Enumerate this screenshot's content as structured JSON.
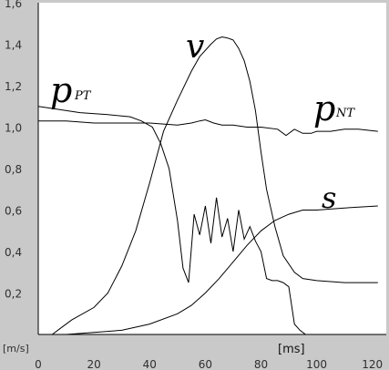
{
  "chart_data": {
    "type": "line",
    "x_unit_label": "[ms]",
    "y_unit_label": "[m/s]",
    "xlim": [
      0,
      125
    ],
    "ylim": [
      0,
      1.6
    ],
    "x_ticks": [
      {
        "value": 0,
        "label": "0"
      },
      {
        "value": 20,
        "label": "20"
      },
      {
        "value": 40,
        "label": "40"
      },
      {
        "value": 60,
        "label": "60"
      },
      {
        "value": 80,
        "label": "80"
      },
      {
        "value": 100,
        "label": "100"
      },
      {
        "value": 120,
        "label": "120"
      }
    ],
    "y_ticks": [
      {
        "value": 0.2,
        "label": "0,2"
      },
      {
        "value": 0.4,
        "label": "0,4"
      },
      {
        "value": 0.6,
        "label": "0,6"
      },
      {
        "value": 0.8,
        "label": "0,8"
      },
      {
        "value": 1.0,
        "label": "1,0"
      },
      {
        "value": 1.2,
        "label": "1,2"
      },
      {
        "value": 1.4,
        "label": "1,4"
      },
      {
        "value": 1.6,
        "label": "1,6"
      }
    ],
    "grid": false,
    "background": "#ffffff",
    "panel_color": "#c9c9c9",
    "line_color": "#000000",
    "series": [
      {
        "label_main": "v",
        "label_sub": "",
        "x": [
          0,
          5,
          8,
          12,
          20,
          25,
          30,
          35,
          40,
          45,
          50,
          55,
          58,
          62,
          64,
          66,
          68,
          70,
          72,
          74,
          76,
          78,
          80,
          82,
          85,
          88,
          92,
          95,
          100,
          110,
          122
        ],
        "y": [
          0.0,
          0.0,
          0.03,
          0.07,
          0.13,
          0.2,
          0.33,
          0.5,
          0.73,
          0.98,
          1.13,
          1.27,
          1.34,
          1.4,
          1.425,
          1.435,
          1.43,
          1.42,
          1.38,
          1.32,
          1.22,
          1.08,
          0.88,
          0.7,
          0.52,
          0.38,
          0.3,
          0.27,
          0.26,
          0.25,
          0.25
        ]
      },
      {
        "label_main": "p",
        "label_sub": "PT",
        "x": [
          0,
          5,
          15,
          25,
          33,
          37,
          41,
          44,
          47,
          50,
          52,
          54,
          56,
          58,
          60,
          62,
          64,
          66,
          68,
          70,
          72,
          74,
          76,
          78,
          80,
          82,
          84,
          86,
          88,
          90,
          92,
          94,
          96,
          122
        ],
        "y": [
          1.1,
          1.09,
          1.07,
          1.06,
          1.05,
          1.03,
          1.0,
          0.92,
          0.8,
          0.55,
          0.32,
          0.25,
          0.58,
          0.48,
          0.62,
          0.44,
          0.66,
          0.47,
          0.56,
          0.4,
          0.6,
          0.46,
          0.52,
          0.45,
          0.4,
          0.27,
          0.26,
          0.26,
          0.25,
          0.23,
          0.05,
          0.02,
          0.0,
          0.0
        ]
      },
      {
        "label_main": "p",
        "label_sub": "NT",
        "x": [
          0,
          10,
          20,
          30,
          40,
          50,
          55,
          58,
          60,
          63,
          66,
          70,
          75,
          80,
          86,
          89,
          92,
          95,
          98,
          100,
          105,
          110,
          115,
          122
        ],
        "y": [
          1.03,
          1.03,
          1.02,
          1.02,
          1.02,
          1.01,
          1.02,
          1.03,
          1.035,
          1.02,
          1.01,
          1.01,
          1.0,
          1.0,
          0.99,
          0.96,
          0.99,
          0.97,
          0.97,
          0.98,
          0.98,
          0.99,
          0.99,
          0.98
        ]
      },
      {
        "label_main": "s",
        "label_sub": "",
        "x": [
          0,
          10,
          20,
          30,
          40,
          50,
          55,
          60,
          65,
          70,
          75,
          80,
          85,
          90,
          95,
          100,
          110,
          122
        ],
        "y": [
          0.0,
          0.0,
          0.01,
          0.02,
          0.05,
          0.1,
          0.14,
          0.2,
          0.27,
          0.35,
          0.43,
          0.5,
          0.55,
          0.58,
          0.6,
          0.6,
          0.61,
          0.62
        ]
      }
    ]
  }
}
